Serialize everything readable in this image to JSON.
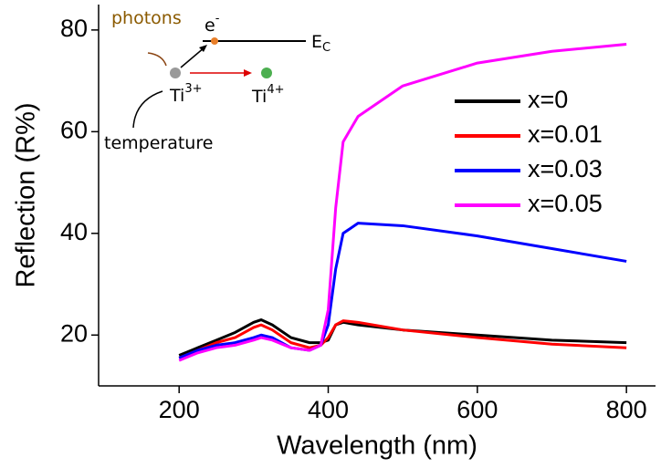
{
  "chart_data": {
    "type": "line",
    "x_label": "Wavelength (nm)",
    "y_label": "Reflection (R%)",
    "xlim": [
      92,
      839
    ],
    "ylim": [
      10,
      85
    ],
    "xticks": [
      200,
      400,
      600,
      800
    ],
    "yticks": [
      20,
      40,
      60,
      80
    ],
    "x": [
      200,
      225,
      250,
      275,
      300,
      310,
      325,
      350,
      375,
      390,
      400,
      410,
      420,
      440,
      500,
      600,
      700,
      800
    ],
    "series": [
      {
        "name": "x=0",
        "color": "#000000",
        "values": [
          16,
          17.5,
          19,
          20.5,
          22.5,
          23,
          22,
          19.5,
          18.5,
          18.5,
          19,
          22,
          22.5,
          22,
          21,
          20,
          19,
          18.5
        ]
      },
      {
        "name": "x=0.01",
        "color": "#ff0000",
        "values": [
          15.5,
          17,
          18.5,
          19.5,
          21.5,
          22,
          21,
          18.5,
          17.5,
          18,
          19.5,
          22,
          22.8,
          22.5,
          21,
          19.5,
          18.2,
          17.5
        ]
      },
      {
        "name": "x=0.03",
        "color": "#0000ff",
        "values": [
          15.5,
          17,
          18,
          18.5,
          19.5,
          20,
          19.5,
          17.5,
          17,
          18,
          22,
          33,
          40,
          42,
          41.5,
          39.5,
          37,
          34.5
        ]
      },
      {
        "name": "x=0.05",
        "color": "#ff00ff",
        "values": [
          15,
          16.5,
          17.5,
          18,
          19,
          19.5,
          19,
          17.5,
          17,
          18,
          25,
          45,
          58,
          63,
          69,
          73.5,
          75.8,
          77.2
        ]
      }
    ],
    "legend": "right",
    "annotations": [
      {
        "text": "photons",
        "color": "#8b5a00"
      },
      {
        "text": "e",
        "sup": "-"
      },
      {
        "text": "E",
        "sub": "C"
      },
      {
        "text": "Ti",
        "sup": "3+"
      },
      {
        "text": "Ti",
        "sup": "4+"
      },
      {
        "text": "temperature"
      }
    ]
  }
}
